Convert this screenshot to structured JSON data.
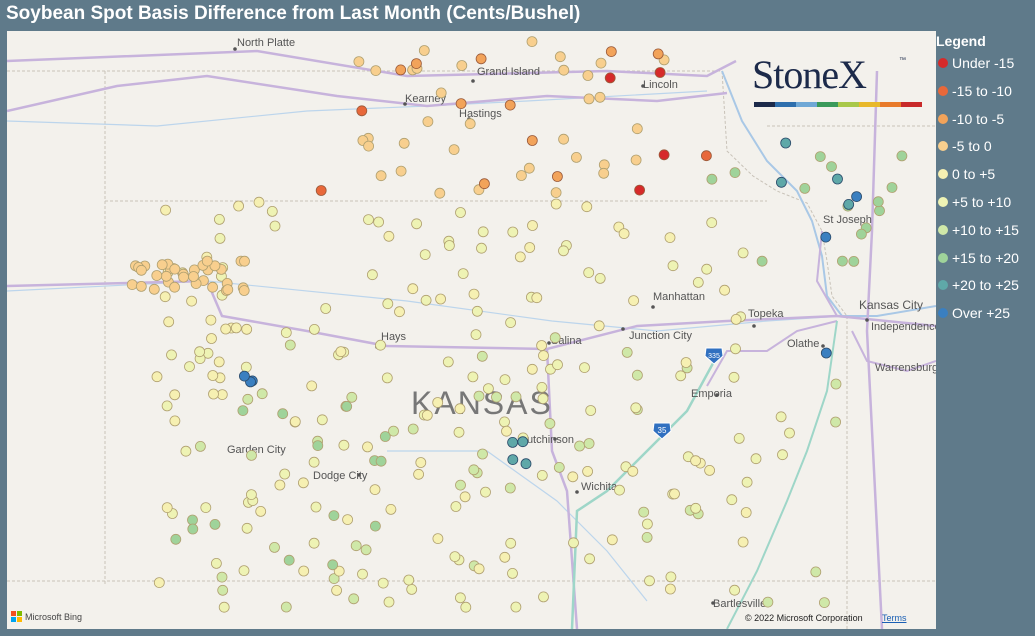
{
  "title": "Soybean Spot Basis Difference from Last Month (Cents/Bushel)",
  "legend": {
    "title": "Legend",
    "items": [
      {
        "label": "Under -15",
        "color": "#d62a2a"
      },
      {
        "label": "-15 to -10",
        "color": "#e8683a"
      },
      {
        "label": "-10 to -5",
        "color": "#f2a35a"
      },
      {
        "label": "-5 to 0",
        "color": "#f8cf8e"
      },
      {
        "label": "0 to +5",
        "color": "#f6f0b2"
      },
      {
        "label": "+5 to +10",
        "color": "#eef3b4"
      },
      {
        "label": "+10 to +15",
        "color": "#cfe8a8"
      },
      {
        "label": "+15 to +20",
        "color": "#9fd39a"
      },
      {
        "label": "+20 to +25",
        "color": "#5fa8a8"
      },
      {
        "label": "Over +25",
        "color": "#3a7fc0"
      }
    ]
  },
  "logo": {
    "text": "StoneX",
    "tm": "™",
    "bar_colors": [
      "#1c2a4a",
      "#2e6fad",
      "#6fa8d6",
      "#3a9a5a",
      "#a8c84a",
      "#e8b82a",
      "#e87a2a",
      "#c82a2a"
    ]
  },
  "places": [
    "North Platte",
    "Grand Island",
    "Kearney",
    "Hastings",
    "Lincoln",
    "St Joseph",
    "Manhattan",
    "Topeka",
    "Kansas City",
    "Independence",
    "Hays",
    "Salina",
    "Junction City",
    "Olathe",
    "Warrensburg",
    "Emporia",
    "Garden City",
    "Dodge City",
    "Hutchinson",
    "Wichita",
    "Bartlesville",
    "KANSAS"
  ],
  "highways": [
    "335",
    "35"
  ],
  "bing": "Microsoft Bing",
  "copyright": "© 2022 Microsoft Corporation",
  "terms": "Terms",
  "dots": [
    {
      "c": 6,
      "n": 45
    },
    {
      "c": 5,
      "n": 120
    },
    {
      "c": 4,
      "n": 80
    },
    {
      "c": 3,
      "n": 70
    },
    {
      "c": 2,
      "n": 10
    },
    {
      "c": 7,
      "n": 30
    },
    {
      "c": 8,
      "n": 8
    },
    {
      "c": 9,
      "n": 6
    },
    {
      "c": 0,
      "n": 4
    },
    {
      "c": 1,
      "n": 3
    }
  ]
}
